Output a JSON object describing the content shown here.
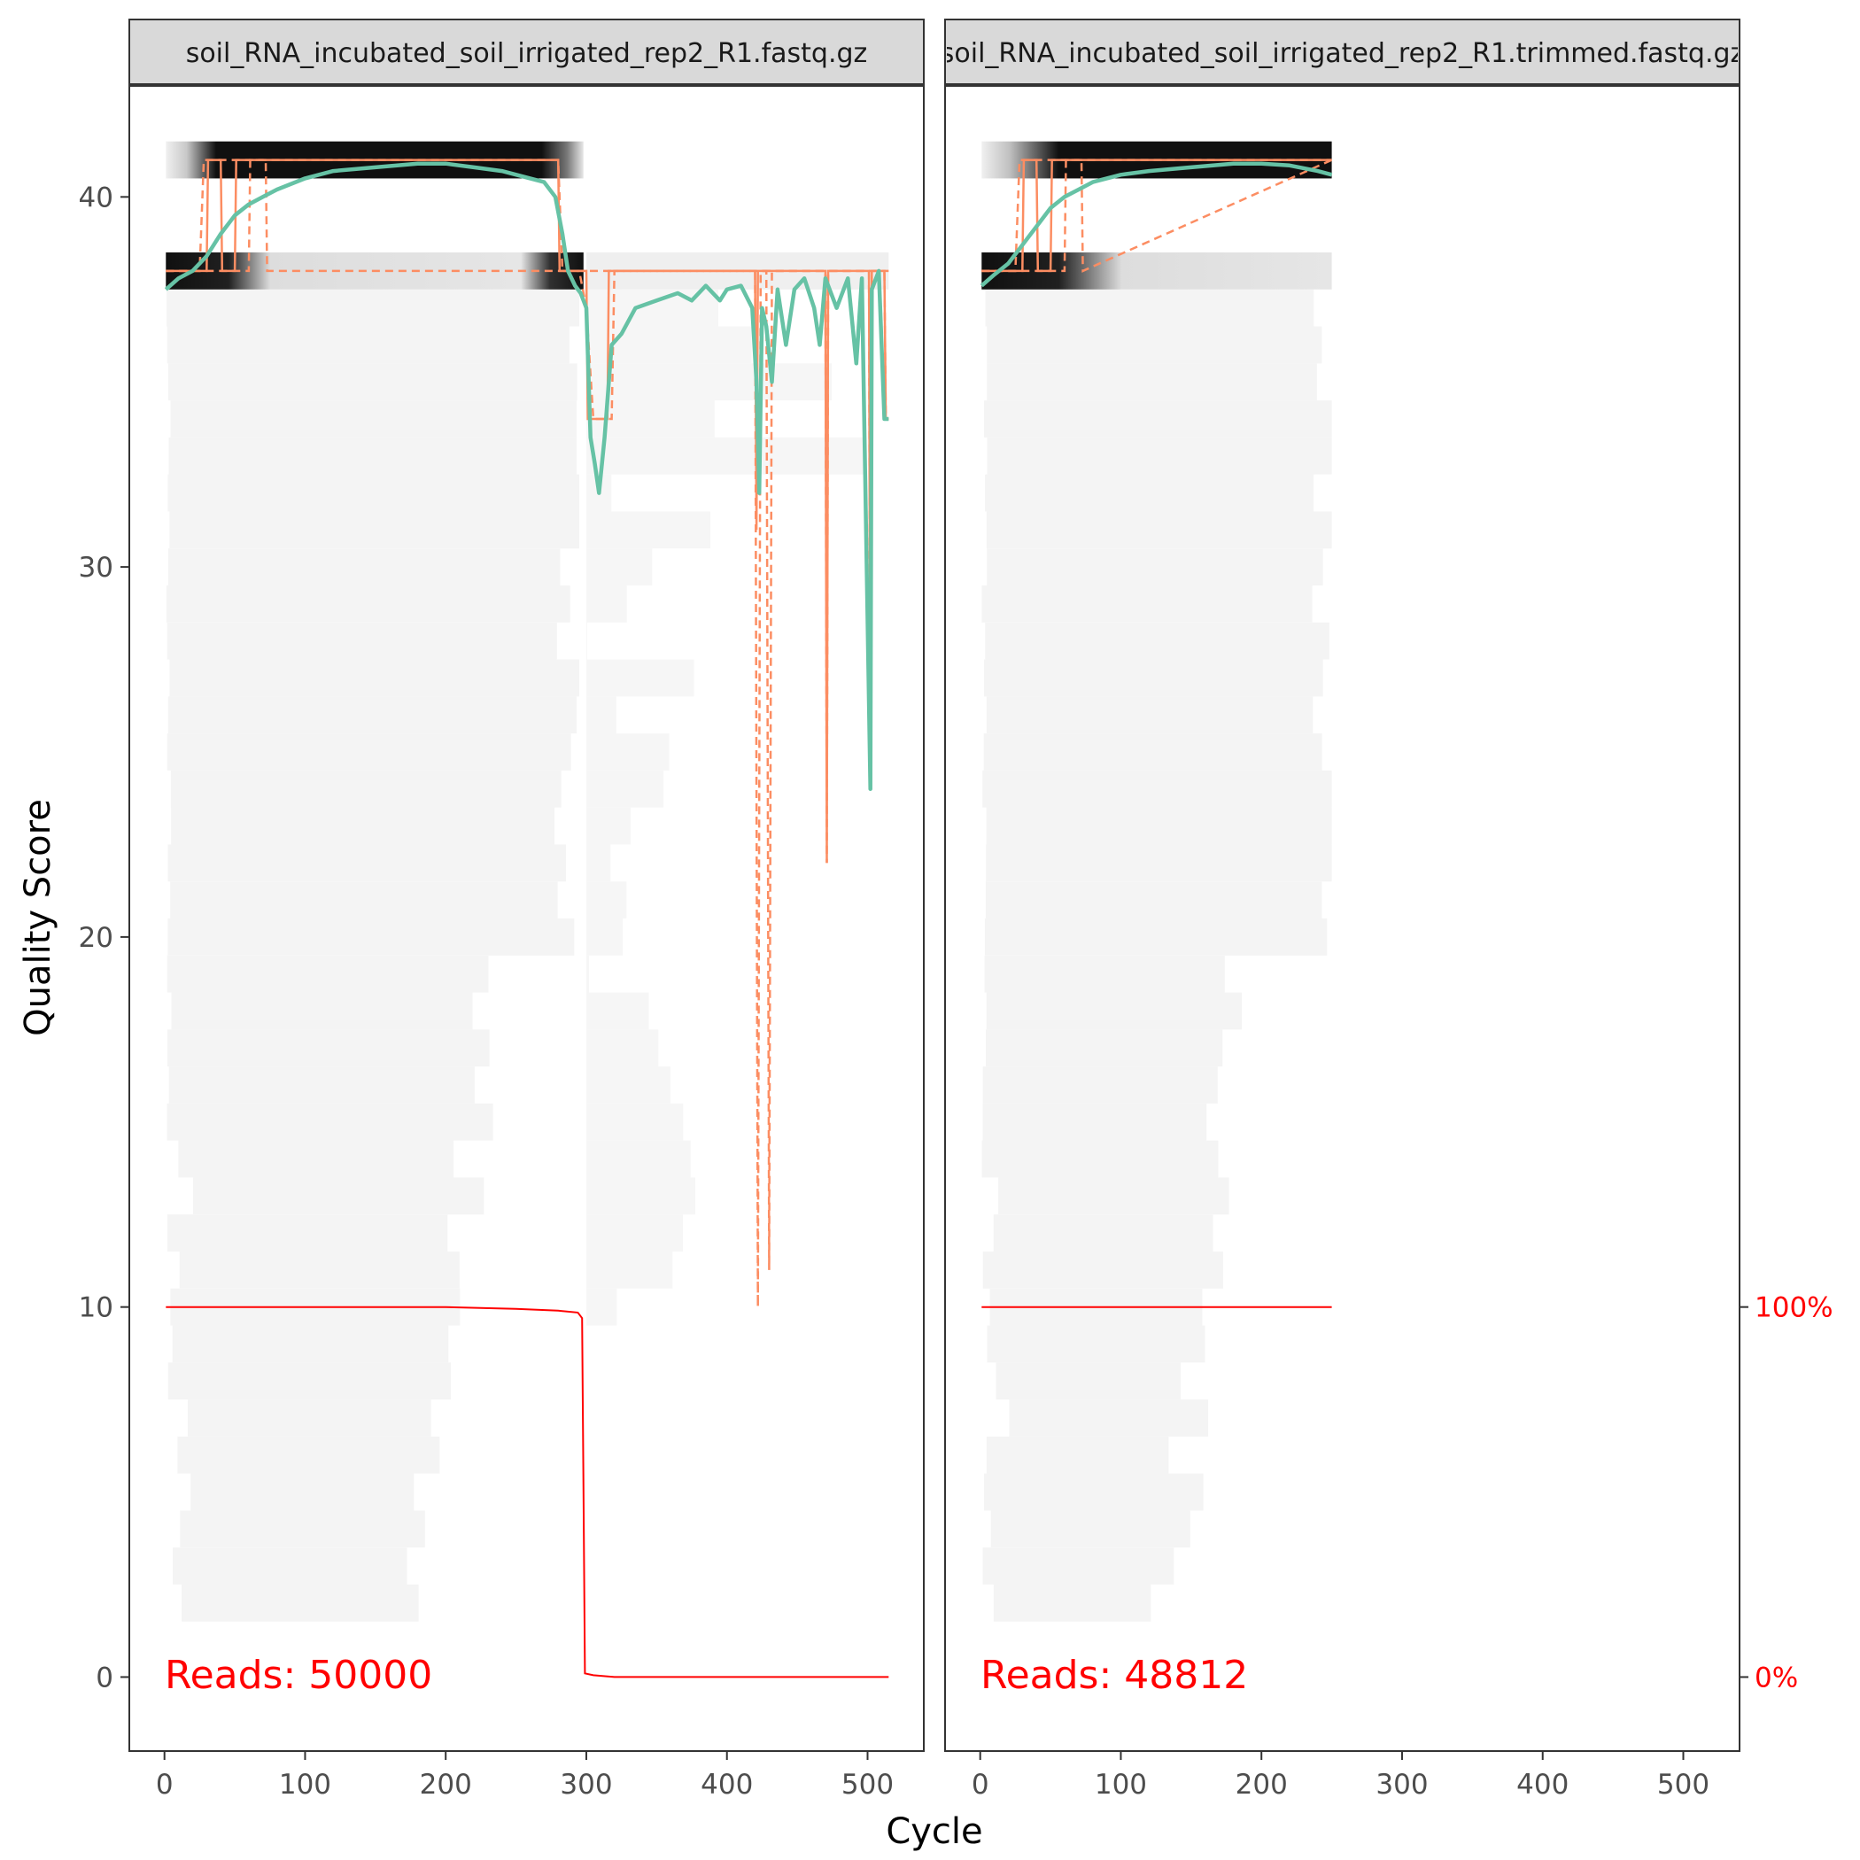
{
  "chart_data": {
    "type": "line",
    "xlabel": "Cycle",
    "ylabel": "Quality Score",
    "xlim": [
      -25,
      540
    ],
    "ylim": [
      -2,
      43
    ],
    "x_ticks": [
      "0",
      "100",
      "200",
      "300",
      "400",
      "500"
    ],
    "y_ticks": [
      "0",
      "10",
      "20",
      "30",
      "40"
    ],
    "right_axis_ticks": [
      "0%",
      "100%"
    ],
    "colors": {
      "mean": "#66c2a5",
      "quantile": "#fc8d62",
      "reads_pct": "#ff0000",
      "heat_dark": "#000000",
      "heat_light": "#f4f4f4",
      "strip_fill": "#d9d9d9"
    },
    "panels": [
      {
        "label": "soil_RNA_incubated_soil_irrigated_rep2_R1.fastq.gz",
        "reads_text": "Reads:  50000",
        "max_cycle": 515,
        "mean_quality": [
          [
            1,
            37.5
          ],
          [
            10,
            37.8
          ],
          [
            20,
            38.0
          ],
          [
            30,
            38.4
          ],
          [
            40,
            39.0
          ],
          [
            50,
            39.5
          ],
          [
            60,
            39.8
          ],
          [
            70,
            40.0
          ],
          [
            80,
            40.2
          ],
          [
            100,
            40.5
          ],
          [
            120,
            40.7
          ],
          [
            150,
            40.8
          ],
          [
            180,
            40.9
          ],
          [
            200,
            40.9
          ],
          [
            220,
            40.8
          ],
          [
            240,
            40.7
          ],
          [
            260,
            40.5
          ],
          [
            270,
            40.4
          ],
          [
            278,
            40.0
          ],
          [
            283,
            39.0
          ],
          [
            287,
            38.0
          ],
          [
            292,
            37.6
          ],
          [
            296,
            37.4
          ],
          [
            300,
            37.0
          ],
          [
            303,
            33.5
          ],
          [
            306,
            32.8
          ],
          [
            309,
            32.0
          ],
          [
            313,
            33.5
          ],
          [
            318,
            36.0
          ],
          [
            325,
            36.3
          ],
          [
            335,
            37.0
          ],
          [
            350,
            37.2
          ],
          [
            365,
            37.4
          ],
          [
            375,
            37.2
          ],
          [
            385,
            37.6
          ],
          [
            395,
            37.2
          ],
          [
            400,
            37.5
          ],
          [
            410,
            37.6
          ],
          [
            418,
            37.0
          ],
          [
            421,
            35.0
          ],
          [
            423,
            32.0
          ],
          [
            425,
            37.0
          ],
          [
            428,
            36.5
          ],
          [
            432,
            35.0
          ],
          [
            436,
            37.5
          ],
          [
            442,
            36.0
          ],
          [
            448,
            37.5
          ],
          [
            455,
            37.8
          ],
          [
            462,
            37.0
          ],
          [
            466,
            36.0
          ],
          [
            470,
            37.8
          ],
          [
            478,
            37.0
          ],
          [
            486,
            37.8
          ],
          [
            492,
            35.5
          ],
          [
            496,
            37.8
          ],
          [
            502,
            24.0
          ],
          [
            503,
            37.5
          ],
          [
            508,
            38.0
          ],
          [
            512,
            34.0
          ],
          [
            515,
            34.0
          ]
        ],
        "median_quality": [
          [
            1,
            38.0
          ],
          [
            30,
            38.0
          ],
          [
            31,
            41.0
          ],
          [
            40,
            41.0
          ],
          [
            41,
            38.0
          ],
          [
            50,
            38.0
          ],
          [
            51,
            41.0
          ],
          [
            280,
            41.0
          ],
          [
            281,
            38.0
          ],
          [
            300,
            38.0
          ],
          [
            301,
            34.0
          ],
          [
            315,
            34.0
          ],
          [
            316,
            38.0
          ],
          [
            420,
            38.0
          ],
          [
            421,
            31.0
          ],
          [
            422,
            38.0
          ],
          [
            470,
            38.0
          ],
          [
            471,
            22.0
          ],
          [
            472,
            38.0
          ],
          [
            501,
            38.0
          ],
          [
            502,
            24.0
          ],
          [
            503,
            38.0
          ],
          [
            512,
            38.0
          ],
          [
            513,
            34.0
          ],
          [
            515,
            34.0
          ]
        ],
        "q25_quality": [
          [
            1,
            38.0
          ],
          [
            60,
            38.0
          ],
          [
            61,
            41.0
          ],
          [
            72,
            41.0
          ],
          [
            73,
            38.0
          ],
          [
            295,
            38.0
          ],
          [
            300,
            37.0
          ],
          [
            305,
            34.0
          ],
          [
            318,
            34.0
          ],
          [
            320,
            38.0
          ],
          [
            420,
            38.0
          ],
          [
            422,
            10.0
          ],
          [
            424,
            38.0
          ],
          [
            428,
            38.0
          ],
          [
            430,
            11.0
          ],
          [
            432,
            38.0
          ],
          [
            470,
            38.0
          ],
          [
            471,
            22.0
          ],
          [
            472,
            38.0
          ],
          [
            501,
            38.0
          ],
          [
            502,
            24.0
          ],
          [
            503,
            38.0
          ],
          [
            512,
            38.0
          ],
          [
            513,
            34.0
          ],
          [
            515,
            34.0
          ]
        ],
        "q75_quality": [
          [
            1,
            38.0
          ],
          [
            25,
            38.0
          ],
          [
            28,
            41.0
          ],
          [
            280,
            41.0
          ],
          [
            283,
            38.0
          ],
          [
            515,
            38.0
          ]
        ],
        "cumulative_reads_pct": [
          [
            1,
            100
          ],
          [
            200,
            100
          ],
          [
            250,
            99.5
          ],
          [
            280,
            99.0
          ],
          [
            294,
            98.5
          ],
          [
            297,
            97.0
          ],
          [
            298,
            50.0
          ],
          [
            299,
            1.0
          ],
          [
            305,
            0.5
          ],
          [
            320,
            0.0
          ],
          [
            515,
            0.0
          ]
        ]
      },
      {
        "label": "soil_RNA_incubated_soil_irrigated_rep2_R1.trimmed.fastq.gz",
        "reads_text": "Reads:  48812",
        "max_cycle": 250,
        "mean_quality": [
          [
            1,
            37.6
          ],
          [
            10,
            37.9
          ],
          [
            20,
            38.2
          ],
          [
            30,
            38.7
          ],
          [
            40,
            39.2
          ],
          [
            50,
            39.7
          ],
          [
            60,
            40.0
          ],
          [
            70,
            40.2
          ],
          [
            80,
            40.4
          ],
          [
            100,
            40.6
          ],
          [
            120,
            40.7
          ],
          [
            150,
            40.8
          ],
          [
            180,
            40.9
          ],
          [
            200,
            40.9
          ],
          [
            220,
            40.85
          ],
          [
            240,
            40.7
          ],
          [
            250,
            40.6
          ]
        ],
        "median_quality": [
          [
            1,
            38.0
          ],
          [
            30,
            38.0
          ],
          [
            31,
            41.0
          ],
          [
            40,
            41.0
          ],
          [
            41,
            38.0
          ],
          [
            50,
            38.0
          ],
          [
            51,
            41.0
          ],
          [
            250,
            41.0
          ]
        ],
        "q25_quality": [
          [
            1,
            38.0
          ],
          [
            60,
            38.0
          ],
          [
            61,
            41.0
          ],
          [
            72,
            41.0
          ],
          [
            73,
            38.0
          ],
          [
            250,
            41.0
          ]
        ],
        "q75_quality": [
          [
            1,
            38.0
          ],
          [
            25,
            38.0
          ],
          [
            28,
            41.0
          ],
          [
            250,
            41.0
          ]
        ],
        "cumulative_reads_pct": [
          [
            1,
            100
          ],
          [
            250,
            100
          ]
        ]
      }
    ]
  }
}
